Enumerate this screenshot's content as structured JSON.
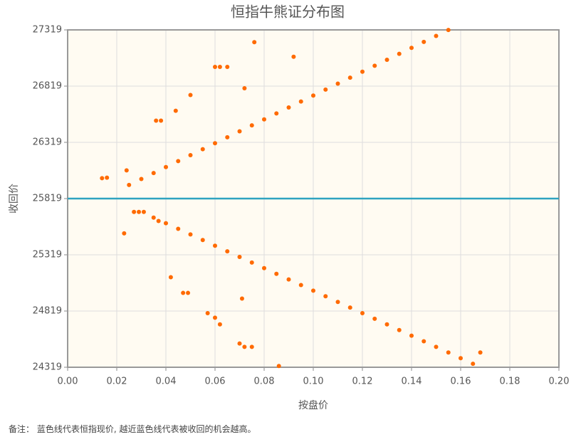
{
  "chart_data": {
    "type": "scatter",
    "title": "恒指牛熊证分布图",
    "x_label": "按盘价",
    "y_label": "收回价",
    "footnote": "备注： 蓝色线代表恒指现价, 越近蓝色线代表被收回的机会越高。",
    "xlim": [
      0,
      0.2
    ],
    "ylim": [
      24319,
      27319
    ],
    "xticks": [
      {
        "value": 0,
        "label": "0.00"
      },
      {
        "value": 0.02,
        "label": "0.02"
      },
      {
        "value": 0.04,
        "label": "0.04"
      },
      {
        "value": 0.06,
        "label": "0.06"
      },
      {
        "value": 0.08,
        "label": "0.08"
      },
      {
        "value": 0.1,
        "label": "0.10"
      },
      {
        "value": 0.12,
        "label": "0.12"
      },
      {
        "value": 0.14,
        "label": "0.14"
      },
      {
        "value": 0.16,
        "label": "0.16"
      },
      {
        "value": 0.18,
        "label": "0.18"
      },
      {
        "value": 0.2,
        "label": "0.20"
      }
    ],
    "yticks": [
      24319,
      24819,
      25319,
      25819,
      26319,
      26819,
      27319
    ],
    "grid": true,
    "reference_line": {
      "value": 25819,
      "color": "#2ea3c0"
    },
    "series": [
      {
        "color": "#ff6a00",
        "x": [
          0.025,
          0.03,
          0.035,
          0.04,
          0.045,
          0.05,
          0.055,
          0.06,
          0.065,
          0.07,
          0.075,
          0.08,
          0.085,
          0.09,
          0.095,
          0.1,
          0.105,
          0.11,
          0.115,
          0.12,
          0.125,
          0.13,
          0.135,
          0.14,
          0.145,
          0.15,
          0.155,
          0.035,
          0.04,
          0.045,
          0.05,
          0.055,
          0.06,
          0.065,
          0.07,
          0.075,
          0.08,
          0.085,
          0.09,
          0.095,
          0.1,
          0.105,
          0.11,
          0.115,
          0.12,
          0.125,
          0.13,
          0.135,
          0.14,
          0.145,
          0.15,
          0.155,
          0.16,
          0.165,
          0.014,
          0.016,
          0.024,
          0.036,
          0.038,
          0.044,
          0.05,
          0.06,
          0.062,
          0.065,
          0.072,
          0.076,
          0.092,
          0.023,
          0.027,
          0.029,
          0.031,
          0.037,
          0.042,
          0.047,
          0.049,
          0.057,
          0.06,
          0.062,
          0.07,
          0.071,
          0.072,
          0.075,
          0.086,
          0.168
        ],
        "values": [
          25940,
          25993,
          26046,
          26099,
          26152,
          26205,
          26258,
          26311,
          26364,
          26417,
          26470,
          26523,
          26576,
          26629,
          26682,
          26735,
          26788,
          26841,
          26894,
          26947,
          27000,
          27053,
          27106,
          27159,
          27212,
          27265,
          27318,
          25650,
          25600,
          25550,
          25500,
          25450,
          25400,
          25350,
          25300,
          25250,
          25200,
          25150,
          25100,
          25050,
          25000,
          24950,
          24900,
          24850,
          24800,
          24750,
          24700,
          24650,
          24600,
          24550,
          24500,
          24450,
          24400,
          24350,
          26000,
          26005,
          26070,
          26512,
          26512,
          26600,
          26740,
          26990,
          26990,
          26990,
          26800,
          27210,
          27080,
          25510,
          25700,
          25700,
          25700,
          25620,
          25120,
          24980,
          24980,
          24800,
          24760,
          24700,
          24530,
          24930,
          24500,
          24500,
          24330,
          24450
        ]
      }
    ]
  }
}
